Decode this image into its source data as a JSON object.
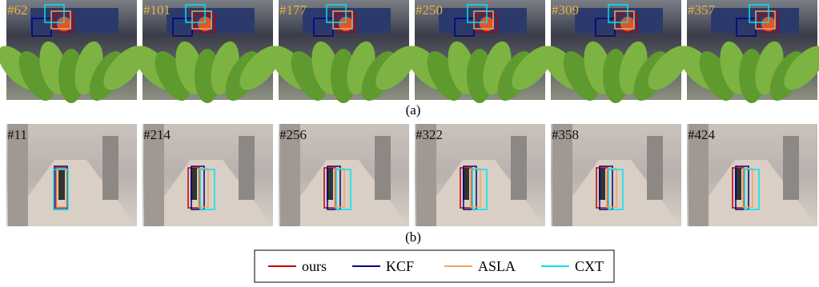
{
  "row_a": {
    "frames": [
      "#62",
      "#101",
      "#177",
      "#250",
      "#309",
      "#357"
    ],
    "caption": "(a)"
  },
  "row_b": {
    "frames": [
      "#11",
      "#214",
      "#256",
      "#322",
      "#358",
      "#424"
    ],
    "caption": "(b)"
  },
  "legend": [
    {
      "label": "ours",
      "color": "#c00000"
    },
    {
      "label": "KCF",
      "color": "#00008b"
    },
    {
      "label": "ASLA",
      "color": "#f4a460"
    },
    {
      "label": "CXT",
      "color": "#00e5ee"
    }
  ]
}
